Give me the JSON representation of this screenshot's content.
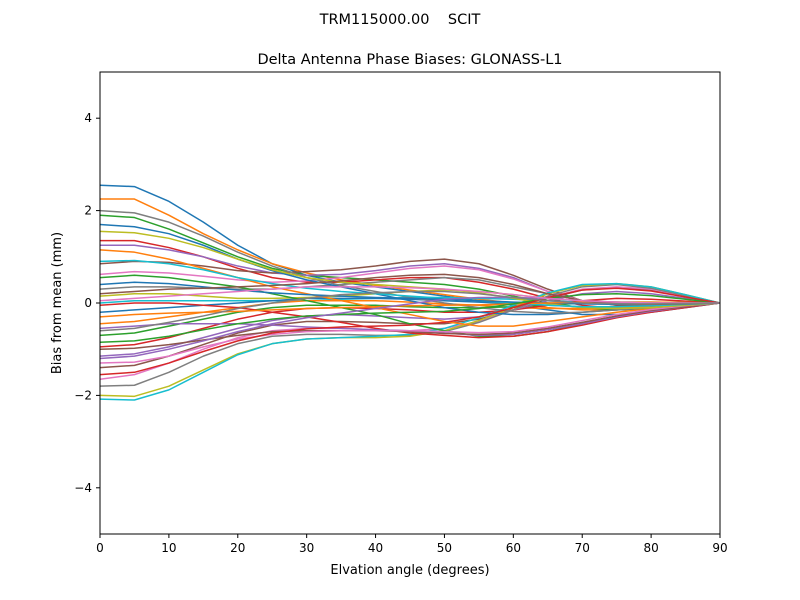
{
  "figure": {
    "suptitle": "TRM115000.00    SCIT"
  },
  "chart_data": {
    "type": "line",
    "title": "Delta Antenna Phase Biases: GLONASS-L1",
    "xlabel": "Elvation angle (degrees)",
    "ylabel": "Bias from mean (mm)",
    "xlim": [
      0,
      90
    ],
    "ylim": [
      -5,
      5
    ],
    "xticks": [
      0,
      10,
      20,
      30,
      40,
      50,
      60,
      70,
      80,
      90
    ],
    "xtick_labels": [
      "0",
      "10",
      "20",
      "30",
      "40",
      "50",
      "60",
      "70",
      "80",
      "90"
    ],
    "yticks": [
      -4,
      -2,
      0,
      2,
      4
    ],
    "ytick_labels": [
      "−4",
      "−2",
      "0",
      "2",
      "4"
    ],
    "grid": false,
    "legend": "none",
    "x": [
      0,
      5,
      10,
      15,
      20,
      25,
      30,
      35,
      40,
      45,
      50,
      55,
      60,
      65,
      70,
      75,
      80,
      85,
      90
    ],
    "colors": [
      "#1f77b4",
      "#ff7f0e",
      "#2ca02c",
      "#d62728",
      "#9467bd",
      "#8c564b",
      "#e377c2",
      "#7f7f7f",
      "#bcbd22",
      "#17becf"
    ],
    "series": [
      {
        "values": [
          2.55,
          2.52,
          2.2,
          1.75,
          1.25,
          0.85,
          0.6,
          0.45,
          0.35,
          0.25,
          0.15,
          0.05,
          -0.05,
          -0.15,
          -0.25,
          -0.25,
          -0.2,
          -0.1,
          0
        ]
      },
      {
        "values": [
          2.25,
          2.25,
          1.9,
          1.5,
          1.15,
          0.85,
          0.65,
          0.5,
          0.38,
          0.28,
          0.18,
          0.08,
          0.0,
          -0.1,
          -0.15,
          -0.15,
          -0.12,
          -0.06,
          0
        ]
      },
      {
        "values": [
          1.9,
          1.85,
          1.6,
          1.3,
          1.0,
          0.75,
          0.6,
          0.55,
          0.5,
          0.45,
          0.4,
          0.3,
          0.15,
          0.0,
          -0.1,
          -0.15,
          -0.12,
          -0.06,
          0
        ]
      },
      {
        "values": [
          1.35,
          1.35,
          1.2,
          1.0,
          0.75,
          0.55,
          0.45,
          0.45,
          0.5,
          0.55,
          0.55,
          0.45,
          0.3,
          0.1,
          -0.05,
          -0.12,
          -0.1,
          -0.05,
          0
        ]
      },
      {
        "values": [
          1.25,
          1.25,
          1.15,
          1.0,
          0.8,
          0.65,
          0.6,
          0.62,
          0.7,
          0.8,
          0.85,
          0.75,
          0.55,
          0.25,
          0.05,
          -0.05,
          -0.05,
          -0.03,
          0
        ]
      },
      {
        "values": [
          0.85,
          0.9,
          0.88,
          0.8,
          0.7,
          0.65,
          0.68,
          0.72,
          0.8,
          0.9,
          0.95,
          0.85,
          0.6,
          0.3,
          0.05,
          -0.05,
          -0.05,
          -0.03,
          0
        ]
      },
      {
        "values": [
          0.62,
          0.68,
          0.65,
          0.58,
          0.5,
          0.45,
          0.48,
          0.55,
          0.65,
          0.75,
          0.8,
          0.72,
          0.52,
          0.25,
          0.05,
          -0.02,
          -0.03,
          -0.02,
          0
        ]
      },
      {
        "values": [
          0.3,
          0.35,
          0.35,
          0.32,
          0.3,
          0.3,
          0.35,
          0.4,
          0.45,
          0.5,
          0.55,
          0.5,
          0.35,
          0.2,
          0.05,
          0.0,
          -0.01,
          -0.01,
          0
        ]
      },
      {
        "values": [
          0.15,
          0.2,
          0.2,
          0.15,
          0.1,
          0.1,
          0.12,
          0.15,
          0.2,
          0.25,
          0.28,
          0.25,
          0.18,
          0.1,
          0.05,
          0.02,
          0.0,
          0.0,
          0
        ]
      },
      {
        "values": [
          0.0,
          0.05,
          0.05,
          0.05,
          0.05,
          0.05,
          0.05,
          0.08,
          0.1,
          0.12,
          0.12,
          0.1,
          0.08,
          0.05,
          0.02,
          0.0,
          0.0,
          0.0,
          0
        ]
      },
      {
        "values": [
          -0.2,
          -0.15,
          -0.1,
          -0.05,
          0.0,
          0.05,
          0.1,
          0.1,
          0.1,
          0.08,
          0.05,
          0.02,
          -0.02,
          -0.05,
          -0.08,
          -0.08,
          -0.06,
          -0.03,
          0
        ]
      },
      {
        "values": [
          -0.45,
          -0.4,
          -0.3,
          -0.2,
          -0.1,
          0.0,
          0.05,
          0.05,
          0.05,
          0.02,
          -0.02,
          -0.05,
          -0.1,
          -0.12,
          -0.12,
          -0.1,
          -0.08,
          -0.04,
          0
        ]
      },
      {
        "values": [
          -0.7,
          -0.65,
          -0.5,
          -0.35,
          -0.2,
          -0.1,
          -0.05,
          -0.05,
          -0.05,
          -0.08,
          -0.1,
          -0.1,
          -0.08,
          -0.05,
          0.0,
          0.02,
          0.02,
          0.01,
          0
        ]
      },
      {
        "values": [
          -0.95,
          -0.9,
          -0.75,
          -0.55,
          -0.35,
          -0.2,
          -0.12,
          -0.1,
          -0.12,
          -0.15,
          -0.2,
          -0.2,
          -0.15,
          -0.05,
          0.05,
          0.1,
          0.08,
          0.04,
          0
        ]
      },
      {
        "values": [
          -1.15,
          -1.1,
          -0.95,
          -0.75,
          -0.55,
          -0.38,
          -0.28,
          -0.25,
          -0.28,
          -0.32,
          -0.35,
          -0.3,
          -0.15,
          0.05,
          0.2,
          0.25,
          0.2,
          0.1,
          0
        ]
      },
      {
        "values": [
          -1.4,
          -1.35,
          -1.15,
          -0.9,
          -0.65,
          -0.48,
          -0.4,
          -0.4,
          -0.42,
          -0.45,
          -0.45,
          -0.35,
          -0.15,
          0.1,
          0.28,
          0.33,
          0.28,
          0.14,
          0
        ]
      },
      {
        "values": [
          -1.65,
          -1.55,
          -1.3,
          -1.0,
          -0.75,
          -0.6,
          -0.55,
          -0.55,
          -0.58,
          -0.6,
          -0.55,
          -0.4,
          -0.15,
          0.12,
          0.3,
          0.35,
          0.3,
          0.15,
          0
        ]
      },
      {
        "values": [
          -1.8,
          -1.78,
          -1.5,
          -1.15,
          -0.88,
          -0.72,
          -0.68,
          -0.68,
          -0.7,
          -0.7,
          -0.62,
          -0.42,
          -0.15,
          0.15,
          0.35,
          0.4,
          0.32,
          0.16,
          0
        ]
      },
      {
        "values": [
          -2.0,
          -2.02,
          -1.8,
          -1.45,
          -1.1,
          -0.88,
          -0.78,
          -0.75,
          -0.75,
          -0.72,
          -0.6,
          -0.38,
          -0.1,
          0.2,
          0.38,
          0.42,
          0.35,
          0.18,
          0
        ]
      },
      {
        "values": [
          -2.08,
          -2.1,
          -1.88,
          -1.5,
          -1.12,
          -0.88,
          -0.78,
          -0.75,
          -0.72,
          -0.68,
          -0.55,
          -0.32,
          -0.05,
          0.22,
          0.4,
          0.42,
          0.35,
          0.18,
          0
        ]
      },
      {
        "values": [
          1.7,
          1.65,
          1.5,
          1.25,
          0.95,
          0.7,
          0.5,
          0.35,
          0.2,
          0.05,
          -0.1,
          -0.2,
          -0.25,
          -0.25,
          -0.2,
          -0.15,
          -0.1,
          -0.05,
          0
        ]
      },
      {
        "values": [
          1.15,
          1.1,
          0.95,
          0.75,
          0.55,
          0.35,
          0.2,
          0.05,
          -0.1,
          -0.25,
          -0.4,
          -0.5,
          -0.5,
          -0.4,
          -0.3,
          -0.2,
          -0.12,
          -0.06,
          0
        ]
      },
      {
        "values": [
          0.55,
          0.6,
          0.55,
          0.45,
          0.35,
          0.2,
          0.05,
          -0.1,
          -0.25,
          -0.45,
          -0.6,
          -0.72,
          -0.72,
          -0.62,
          -0.45,
          -0.3,
          -0.18,
          -0.08,
          0
        ]
      },
      {
        "values": [
          -0.05,
          0.0,
          0.0,
          -0.05,
          -0.1,
          -0.2,
          -0.3,
          -0.42,
          -0.55,
          -0.65,
          -0.7,
          -0.75,
          -0.72,
          -0.62,
          -0.48,
          -0.32,
          -0.2,
          -0.1,
          0
        ]
      },
      {
        "values": [
          -0.55,
          -0.5,
          -0.45,
          -0.45,
          -0.45,
          -0.48,
          -0.52,
          -0.55,
          -0.58,
          -0.6,
          -0.65,
          -0.7,
          -0.68,
          -0.58,
          -0.45,
          -0.3,
          -0.18,
          -0.08,
          0
        ]
      },
      {
        "values": [
          -1.0,
          -0.98,
          -0.9,
          -0.8,
          -0.7,
          -0.62,
          -0.6,
          -0.6,
          -0.6,
          -0.62,
          -0.66,
          -0.68,
          -0.65,
          -0.55,
          -0.42,
          -0.28,
          -0.16,
          -0.08,
          0
        ]
      },
      {
        "values": [
          -1.3,
          -1.28,
          -1.15,
          -0.95,
          -0.78,
          -0.68,
          -0.62,
          -0.6,
          -0.6,
          -0.6,
          -0.62,
          -0.64,
          -0.62,
          -0.52,
          -0.38,
          -0.25,
          -0.14,
          -0.06,
          0
        ]
      },
      {
        "values": [
          2.0,
          1.95,
          1.75,
          1.45,
          1.1,
          0.8,
          0.55,
          0.38,
          0.25,
          0.12,
          0.0,
          -0.1,
          -0.18,
          -0.22,
          -0.2,
          -0.15,
          -0.1,
          -0.05,
          0
        ]
      },
      {
        "values": [
          1.55,
          1.52,
          1.4,
          1.2,
          0.95,
          0.72,
          0.55,
          0.45,
          0.4,
          0.35,
          0.3,
          0.22,
          0.1,
          -0.02,
          -0.1,
          -0.12,
          -0.1,
          -0.05,
          0
        ]
      },
      {
        "values": [
          0.9,
          0.92,
          0.85,
          0.72,
          0.55,
          0.42,
          0.32,
          0.25,
          0.2,
          0.15,
          0.1,
          0.05,
          0.0,
          -0.05,
          -0.08,
          -0.08,
          -0.06,
          -0.03,
          0
        ]
      },
      {
        "values": [
          0.4,
          0.45,
          0.42,
          0.35,
          0.28,
          0.22,
          0.18,
          0.15,
          0.12,
          0.1,
          0.08,
          0.05,
          0.02,
          0.0,
          -0.02,
          -0.03,
          -0.02,
          -0.01,
          0
        ]
      },
      {
        "values": [
          -0.3,
          -0.25,
          -0.22,
          -0.2,
          -0.18,
          -0.15,
          -0.12,
          -0.1,
          -0.08,
          -0.06,
          -0.05,
          -0.04,
          -0.02,
          0.0,
          0.02,
          0.02,
          0.02,
          0.01,
          0
        ]
      },
      {
        "values": [
          -0.85,
          -0.82,
          -0.72,
          -0.58,
          -0.45,
          -0.35,
          -0.28,
          -0.25,
          -0.22,
          -0.2,
          -0.18,
          -0.12,
          -0.02,
          0.1,
          0.18,
          0.2,
          0.16,
          0.08,
          0
        ]
      },
      {
        "values": [
          -1.55,
          -1.5,
          -1.3,
          -1.05,
          -0.82,
          -0.65,
          -0.56,
          -0.52,
          -0.5,
          -0.48,
          -0.42,
          -0.3,
          -0.1,
          0.12,
          0.28,
          0.32,
          0.26,
          0.13,
          0
        ]
      },
      {
        "values": [
          -1.2,
          -1.15,
          -1.0,
          -0.82,
          -0.62,
          -0.45,
          -0.32,
          -0.22,
          -0.12,
          -0.02,
          0.08,
          0.12,
          0.12,
          0.1,
          0.05,
          0.02,
          0.0,
          0.0,
          0
        ]
      },
      {
        "values": [
          0.2,
          0.25,
          0.3,
          0.32,
          0.35,
          0.38,
          0.42,
          0.48,
          0.55,
          0.6,
          0.62,
          0.55,
          0.4,
          0.2,
          0.05,
          -0.02,
          -0.03,
          -0.02,
          0
        ]
      },
      {
        "values": [
          0.05,
          0.1,
          0.15,
          0.2,
          0.25,
          0.3,
          0.35,
          0.35,
          0.35,
          0.33,
          0.3,
          0.25,
          0.18,
          0.1,
          0.05,
          0.02,
          0.0,
          0.0,
          0
        ]
      },
      {
        "values": [
          -0.6,
          -0.55,
          -0.42,
          -0.28,
          -0.12,
          0.0,
          0.1,
          0.18,
          0.22,
          0.25,
          0.25,
          0.2,
          0.12,
          0.05,
          0.0,
          -0.02,
          -0.02,
          -0.01,
          0
        ]
      }
    ]
  }
}
